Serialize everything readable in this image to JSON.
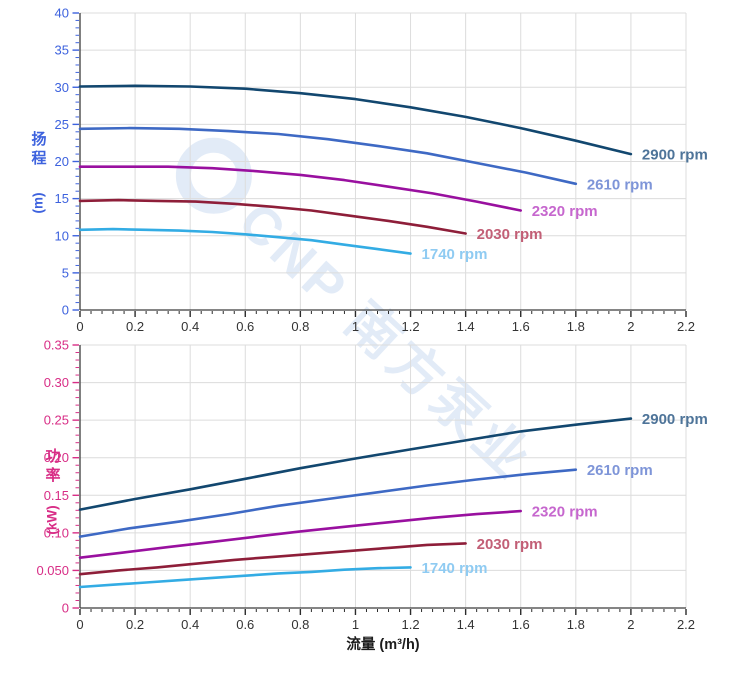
{
  "watermark": {
    "text": "CNP 南方泵业"
  },
  "chart_data": [
    {
      "type": "line",
      "title": "",
      "xlabel": "",
      "ylabel": "扬程",
      "ylabel_unit": "(m)",
      "axis_color": "#3d62de",
      "xlim": [
        0,
        2.2
      ],
      "ylim": [
        0,
        40
      ],
      "grid": true,
      "xticks": {
        "labels": [
          "0",
          "0.2",
          "0.4",
          "0.6",
          "0.8",
          "1",
          "1.2",
          "1.4",
          "1.6",
          "1.8",
          "2",
          "2.2"
        ],
        "values": [
          0,
          0.2,
          0.4,
          0.6,
          0.8,
          1,
          1.2,
          1.4,
          1.6,
          1.8,
          2,
          2.2
        ],
        "minor_step": 0.04
      },
      "yticks": {
        "labels": [
          "0",
          "5",
          "10",
          "15",
          "20",
          "25",
          "30",
          "35",
          "40"
        ],
        "values": [
          0,
          5,
          10,
          15,
          20,
          25,
          30,
          35,
          40
        ],
        "minor_step": 1
      },
      "series": [
        {
          "name": "2900 rpm",
          "color": "#12476f",
          "label_color": "#4e7499",
          "points": [
            [
              0,
              30.1
            ],
            [
              0.2,
              30.2
            ],
            [
              0.4,
              30.1
            ],
            [
              0.6,
              29.8
            ],
            [
              0.8,
              29.2
            ],
            [
              1.0,
              28.4
            ],
            [
              1.2,
              27.3
            ],
            [
              1.4,
              26.0
            ],
            [
              1.6,
              24.5
            ],
            [
              1.8,
              22.8
            ],
            [
              2.0,
              21.0
            ]
          ]
        },
        {
          "name": "2610 rpm",
          "color": "#3e69c4",
          "label_color": "#7e95d8",
          "points": [
            [
              0,
              24.4
            ],
            [
              0.18,
              24.5
            ],
            [
              0.36,
              24.4
            ],
            [
              0.54,
              24.1
            ],
            [
              0.72,
              23.7
            ],
            [
              0.9,
              23.0
            ],
            [
              1.08,
              22.1
            ],
            [
              1.26,
              21.1
            ],
            [
              1.44,
              19.8
            ],
            [
              1.62,
              18.5
            ],
            [
              1.8,
              17.0
            ]
          ]
        },
        {
          "name": "2320 rpm",
          "color": "#99109f",
          "label_color": "#c667ce",
          "points": [
            [
              0,
              19.3
            ],
            [
              0.16,
              19.3
            ],
            [
              0.32,
              19.3
            ],
            [
              0.48,
              19.1
            ],
            [
              0.64,
              18.7
            ],
            [
              0.8,
              18.2
            ],
            [
              0.96,
              17.5
            ],
            [
              1.12,
              16.6
            ],
            [
              1.28,
              15.7
            ],
            [
              1.44,
              14.6
            ],
            [
              1.6,
              13.4
            ]
          ]
        },
        {
          "name": "2030 rpm",
          "color": "#8e1e39",
          "label_color": "#c25f76",
          "points": [
            [
              0,
              14.7
            ],
            [
              0.14,
              14.8
            ],
            [
              0.28,
              14.7
            ],
            [
              0.42,
              14.6
            ],
            [
              0.56,
              14.3
            ],
            [
              0.7,
              13.9
            ],
            [
              0.84,
              13.4
            ],
            [
              0.98,
              12.7
            ],
            [
              1.12,
              12.0
            ],
            [
              1.26,
              11.2
            ],
            [
              1.4,
              10.3
            ]
          ]
        },
        {
          "name": "1740 rpm",
          "color": "#33ace4",
          "label_color": "#8fcbf2",
          "points": [
            [
              0,
              10.8
            ],
            [
              0.12,
              10.9
            ],
            [
              0.24,
              10.8
            ],
            [
              0.36,
              10.7
            ],
            [
              0.48,
              10.5
            ],
            [
              0.6,
              10.2
            ],
            [
              0.72,
              9.8
            ],
            [
              0.84,
              9.4
            ],
            [
              0.96,
              8.8
            ],
            [
              1.08,
              8.2
            ],
            [
              1.2,
              7.6
            ]
          ]
        }
      ]
    },
    {
      "type": "line",
      "title": "",
      "xlabel": "流量 (m³/h)",
      "ylabel": "功率",
      "ylabel_unit": "(kW)",
      "axis_color": "#d82d86",
      "xlim": [
        0,
        2.2
      ],
      "ylim": [
        0,
        0.35
      ],
      "grid": true,
      "xticks": {
        "labels": [
          "0",
          "0.2",
          "0.4",
          "0.6",
          "0.8",
          "1",
          "1.2",
          "1.4",
          "1.6",
          "1.8",
          "2",
          "2.2"
        ],
        "values": [
          0,
          0.2,
          0.4,
          0.6,
          0.8,
          1,
          1.2,
          1.4,
          1.6,
          1.8,
          2,
          2.2
        ],
        "minor_step": 0.04
      },
      "yticks": {
        "labels": [
          "0",
          "0.050",
          "0.10",
          "0.15",
          "0.20",
          "0.25",
          "0.30",
          "0.35"
        ],
        "values": [
          0,
          0.05,
          0.1,
          0.15,
          0.2,
          0.25,
          0.3,
          0.35
        ],
        "minor_step": 0.01
      },
      "series": [
        {
          "name": "2900 rpm",
          "color": "#12476f",
          "label_color": "#4e7499",
          "points": [
            [
              0,
              0.131
            ],
            [
              0.2,
              0.145
            ],
            [
              0.4,
              0.158
            ],
            [
              0.6,
              0.172
            ],
            [
              0.8,
              0.186
            ],
            [
              1.0,
              0.199
            ],
            [
              1.2,
              0.211
            ],
            [
              1.4,
              0.223
            ],
            [
              1.6,
              0.235
            ],
            [
              1.8,
              0.244
            ],
            [
              2.0,
              0.252
            ]
          ]
        },
        {
          "name": "2610 rpm",
          "color": "#3e69c4",
          "label_color": "#7e95d8",
          "points": [
            [
              0,
              0.095
            ],
            [
              0.18,
              0.106
            ],
            [
              0.36,
              0.115
            ],
            [
              0.54,
              0.125
            ],
            [
              0.72,
              0.136
            ],
            [
              0.9,
              0.145
            ],
            [
              1.08,
              0.154
            ],
            [
              1.26,
              0.163
            ],
            [
              1.44,
              0.171
            ],
            [
              1.62,
              0.178
            ],
            [
              1.8,
              0.184
            ]
          ]
        },
        {
          "name": "2320 rpm",
          "color": "#99109f",
          "label_color": "#c667ce",
          "points": [
            [
              0,
              0.067
            ],
            [
              0.16,
              0.074
            ],
            [
              0.32,
              0.081
            ],
            [
              0.48,
              0.088
            ],
            [
              0.64,
              0.095
            ],
            [
              0.8,
              0.102
            ],
            [
              0.96,
              0.108
            ],
            [
              1.12,
              0.114
            ],
            [
              1.28,
              0.12
            ],
            [
              1.44,
              0.125
            ],
            [
              1.6,
              0.129
            ]
          ]
        },
        {
          "name": "2030 rpm",
          "color": "#8e1e39",
          "label_color": "#c25f76",
          "points": [
            [
              0,
              0.045
            ],
            [
              0.14,
              0.05
            ],
            [
              0.28,
              0.054
            ],
            [
              0.42,
              0.059
            ],
            [
              0.56,
              0.064
            ],
            [
              0.7,
              0.068
            ],
            [
              0.84,
              0.072
            ],
            [
              0.98,
              0.076
            ],
            [
              1.12,
              0.08
            ],
            [
              1.26,
              0.084
            ],
            [
              1.4,
              0.086
            ]
          ]
        },
        {
          "name": "1740 rpm",
          "color": "#33ace4",
          "label_color": "#8fcbf2",
          "points": [
            [
              0,
              0.028
            ],
            [
              0.12,
              0.031
            ],
            [
              0.24,
              0.034
            ],
            [
              0.36,
              0.037
            ],
            [
              0.48,
              0.04
            ],
            [
              0.6,
              0.043
            ],
            [
              0.72,
              0.046
            ],
            [
              0.84,
              0.048
            ],
            [
              0.96,
              0.051
            ],
            [
              1.08,
              0.053
            ],
            [
              1.2,
              0.054
            ]
          ]
        }
      ]
    }
  ]
}
